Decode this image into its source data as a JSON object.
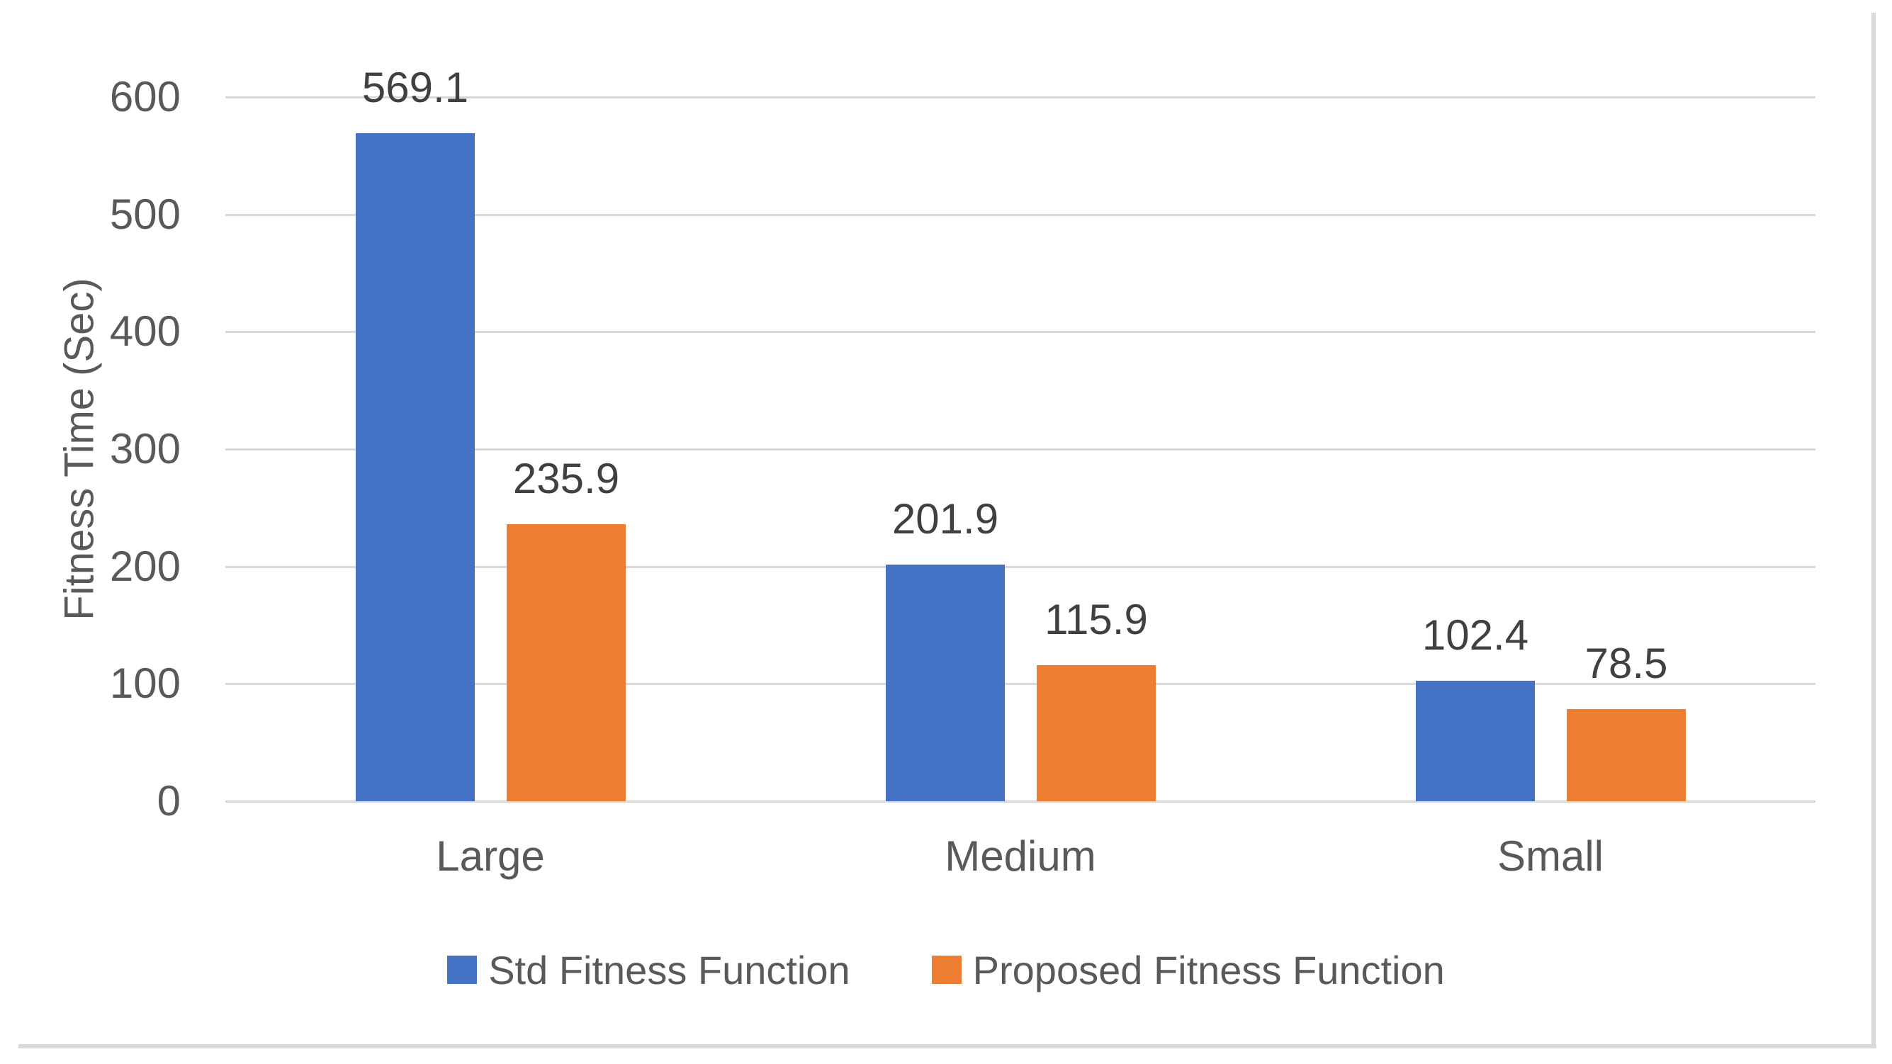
{
  "chart_data": {
    "type": "bar",
    "title": "",
    "categories": [
      "Large",
      "Medium",
      "Small"
    ],
    "series": [
      {
        "name": "Std Fitness Function",
        "color": "#4472C4",
        "values": [
          569.1,
          201.9,
          102.4
        ],
        "labels": [
          "569.1",
          "201.9",
          "102.4"
        ]
      },
      {
        "name": "Proposed Fitness Function",
        "color": "#ED7D31",
        "values": [
          235.9,
          115.9,
          78.5
        ],
        "labels": [
          "235.9",
          "115.9",
          "78.5"
        ]
      }
    ],
    "xlabel": "",
    "ylabel": "Fitness Time (Sec)",
    "ylim": [
      0,
      600
    ],
    "yticks": [
      600,
      500,
      400,
      300,
      200,
      100,
      0
    ],
    "grid": true,
    "legend_position": "bottom"
  },
  "colors": {
    "gridline": "#D9D9D9",
    "axis_line": "#D6D6D6",
    "tick_text": "#595959",
    "data_label_text": "#404040",
    "frame_border": "#DADADA",
    "background": "#FFFFFF"
  }
}
